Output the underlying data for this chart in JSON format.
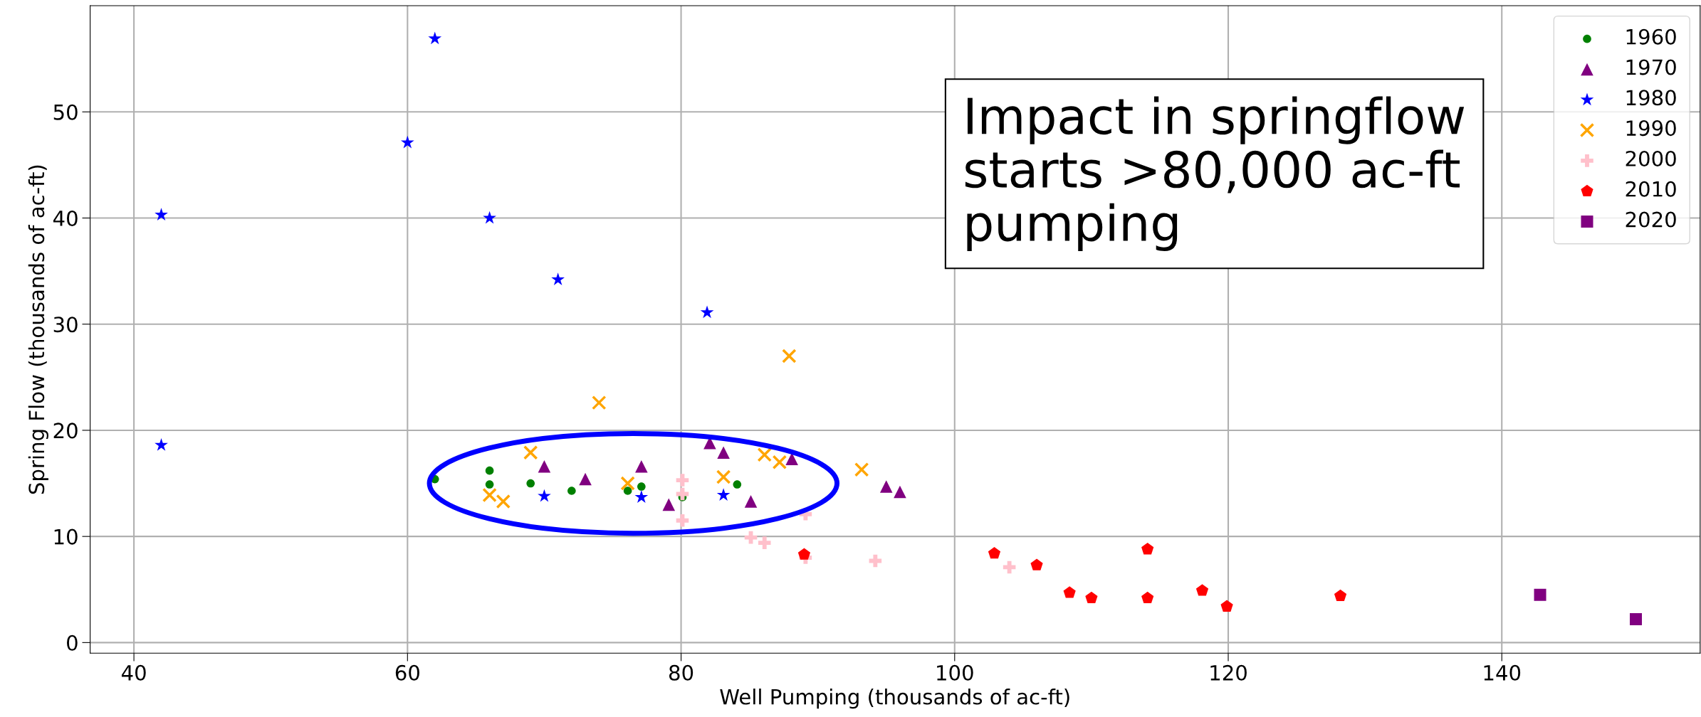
{
  "chart_data": {
    "type": "scatter",
    "xlabel": "Well Pumping (thousands of ac-ft)",
    "ylabel": "Spring Flow (thousands of ac-ft)",
    "annotations": [
      "Impact in springflow\nstarts >80,000 ac-ft\npumping"
    ],
    "xlim": [
      36.8,
      154.5
    ],
    "ylim": [
      -1,
      60
    ],
    "xticks": [
      40,
      60,
      80,
      100,
      120,
      140
    ],
    "yticks": [
      0,
      10,
      20,
      30,
      40,
      50
    ],
    "grid": true,
    "legend": "top right",
    "series": [
      {
        "name": "1960",
        "color": "#008000",
        "marker": "circle",
        "x": [
          62.0,
          66.0,
          66.0,
          69.0,
          72.0,
          76.1,
          77.1,
          80.1,
          84.1
        ],
        "values": [
          15.4,
          16.2,
          14.9,
          15.0,
          14.3,
          14.3,
          14.7,
          13.7,
          14.9
        ]
      },
      {
        "name": "1970",
        "color": "#800080",
        "marker": "triangle",
        "x": [
          70.0,
          73.0,
          77.1,
          79.1,
          82.1,
          83.1,
          85.1,
          88.1,
          95.0,
          96.0
        ],
        "values": [
          16.6,
          15.4,
          16.6,
          13.0,
          18.8,
          17.9,
          13.3,
          17.3,
          14.7,
          14.2
        ]
      },
      {
        "name": "1980",
        "color": "#0000ff",
        "marker": "star",
        "x": [
          42.0,
          42.0,
          60.0,
          62.0,
          66.0,
          71.0,
          81.9,
          70.0,
          77.1,
          83.1
        ],
        "values": [
          40.3,
          18.6,
          47.1,
          56.9,
          40.0,
          34.2,
          31.1,
          13.8,
          13.7,
          13.9
        ]
      },
      {
        "name": "1990",
        "color": "#ffa500",
        "marker": "cross",
        "x": [
          74.0,
          87.9,
          69.0,
          66.0,
          67.0,
          76.1,
          83.1,
          86.1,
          87.2,
          93.2
        ],
        "values": [
          22.6,
          27.0,
          17.9,
          13.9,
          13.3,
          15.0,
          15.6,
          17.7,
          17.0,
          16.3
        ]
      },
      {
        "name": "2000",
        "color": "#ffc0cb",
        "marker": "plus",
        "x": [
          80.1,
          80.1,
          80.1,
          89.1,
          85.1,
          86.1,
          89.1,
          94.2,
          104.0
        ],
        "values": [
          15.3,
          14.0,
          11.5,
          12.1,
          9.9,
          9.4,
          8.0,
          7.7,
          7.1
        ]
      },
      {
        "name": "2010",
        "color": "#ff0000",
        "x": [
          89.0,
          102.9,
          106.0,
          108.4,
          110.0,
          114.1,
          114.1,
          118.1,
          119.9,
          128.2
        ],
        "values": [
          8.3,
          8.4,
          7.3,
          4.7,
          4.2,
          8.8,
          4.2,
          4.9,
          3.4,
          4.4
        ]
      },
      {
        "name": "2020",
        "color": "#800080",
        "marker": "square",
        "x": [
          142.8,
          149.8
        ],
        "values": [
          4.5,
          2.2
        ]
      }
    ]
  }
}
